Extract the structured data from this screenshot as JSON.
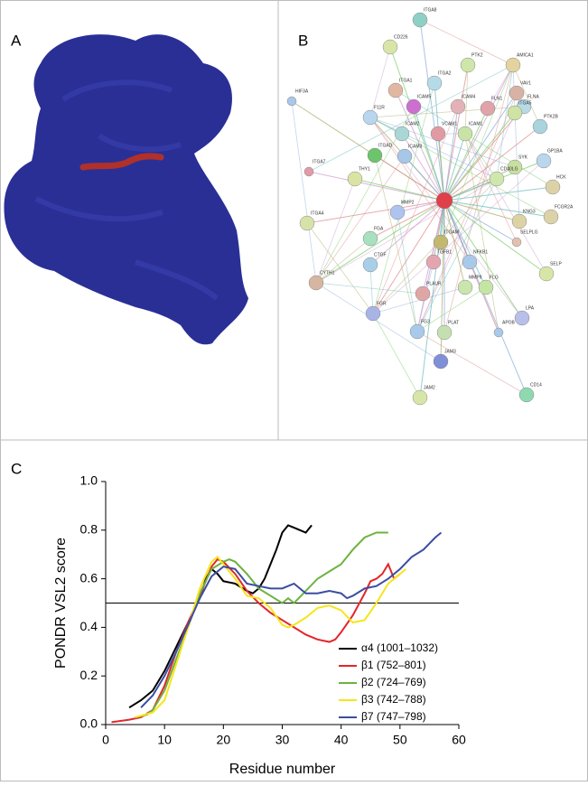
{
  "panels": {
    "a": "A",
    "b": "B",
    "c": "C"
  },
  "network": {
    "nodes": [
      "ITGA8",
      "CD226",
      "PTK2",
      "AMICA1",
      "HIF3A",
      "ITGA2",
      "VAV1",
      "FLN1",
      "FLNA",
      "ITGA1",
      "F11R",
      "ICAM5",
      "ICAM4",
      "ITGA5",
      "PTK2B",
      "ICAM2",
      "VCAM1",
      "ICAM1",
      "ICAM3",
      "GP1BA",
      "ITGAD",
      "ITGA7",
      "SYK",
      "HCK",
      "CD40LG",
      "THY1",
      "ITGA4",
      "MMP2",
      "KNG3",
      "FCGR2A",
      "SELPLG",
      "CYTH1",
      "FGA",
      "CTGF",
      "TGFB1",
      "ITGAM",
      "NFKB1",
      "SELP",
      "FGR",
      "PLAUR",
      "MMP9",
      "FLG",
      "PLAT",
      "LPA",
      "APOB",
      "FG3",
      "JAM3",
      "JAM2",
      "CD14"
    ]
  },
  "chart_data": {
    "type": "line",
    "xlabel": "Residue number",
    "ylabel": "PONDR VSL2 score",
    "xlim": [
      0,
      60
    ],
    "xticks": [
      0,
      10,
      20,
      30,
      40,
      50,
      60
    ],
    "ylim": [
      0,
      1
    ],
    "yticks": [
      {
        "value": 0,
        "label": "0.0"
      },
      {
        "value": 0.2,
        "label": "0.2"
      },
      {
        "value": 0.4,
        "label": "0.4"
      },
      {
        "value": 0.6,
        "label": "0.6"
      },
      {
        "value": 0.8,
        "label": "0.8"
      },
      {
        "value": 1,
        "label": "1.0"
      }
    ],
    "reference_line": 0.5,
    "legend": "lower right",
    "series": [
      {
        "name": "α4 (1001–1032)",
        "color": "#000000",
        "x": [
          4,
          6,
          8,
          10,
          12,
          14,
          16,
          17,
          18,
          19,
          20,
          22,
          24,
          25,
          26,
          27,
          28,
          29,
          30,
          31,
          32,
          33,
          34,
          35
        ],
        "values": [
          0.07,
          0.1,
          0.14,
          0.22,
          0.32,
          0.42,
          0.52,
          0.6,
          0.64,
          0.62,
          0.59,
          0.58,
          0.55,
          0.54,
          0.56,
          0.6,
          0.66,
          0.72,
          0.79,
          0.82,
          0.81,
          0.8,
          0.79,
          0.82
        ]
      },
      {
        "name": "β1 (752–801)",
        "color": "#e3262b",
        "x": [
          1,
          4,
          6,
          8,
          10,
          12,
          14,
          16,
          18,
          19,
          20,
          22,
          24,
          26,
          28,
          30,
          32,
          34,
          36,
          38,
          39,
          40,
          42,
          44,
          45,
          46,
          47,
          48,
          49,
          50
        ],
        "values": [
          0.01,
          0.02,
          0.03,
          0.06,
          0.16,
          0.3,
          0.42,
          0.53,
          0.65,
          0.68,
          0.67,
          0.62,
          0.55,
          0.5,
          0.46,
          0.43,
          0.4,
          0.37,
          0.35,
          0.34,
          0.35,
          0.38,
          0.45,
          0.54,
          0.59,
          0.6,
          0.62,
          0.66,
          0.6,
          0.62
        ]
      },
      {
        "name": "β2 (724–769)",
        "color": "#6cb33f",
        "x": [
          5,
          7,
          8,
          10,
          12,
          14,
          16,
          18,
          20,
          21,
          22,
          24,
          26,
          28,
          30,
          31,
          32,
          34,
          36,
          38,
          40,
          42,
          44,
          46,
          48
        ],
        "values": [
          0.03,
          0.04,
          0.06,
          0.14,
          0.27,
          0.4,
          0.54,
          0.64,
          0.67,
          0.68,
          0.67,
          0.62,
          0.56,
          0.53,
          0.5,
          0.52,
          0.5,
          0.55,
          0.6,
          0.63,
          0.66,
          0.72,
          0.77,
          0.79,
          0.79
        ]
      },
      {
        "name": "β3 (742–788)",
        "color": "#f6e51b",
        "x": [
          5,
          8,
          10,
          12,
          14,
          16,
          18,
          19,
          20,
          22,
          24,
          26,
          28,
          30,
          31,
          32,
          34,
          36,
          38,
          40,
          42,
          44,
          46,
          48,
          50,
          51
        ],
        "values": [
          0.03,
          0.05,
          0.1,
          0.25,
          0.4,
          0.56,
          0.67,
          0.69,
          0.66,
          0.6,
          0.53,
          0.52,
          0.48,
          0.41,
          0.4,
          0.41,
          0.44,
          0.48,
          0.49,
          0.47,
          0.42,
          0.43,
          0.5,
          0.58,
          0.62,
          0.64
        ]
      },
      {
        "name": "β7 (747–798)",
        "color": "#3b4da1",
        "x": [
          6,
          8,
          10,
          12,
          14,
          16,
          18,
          20,
          22,
          24,
          26,
          28,
          30,
          32,
          34,
          36,
          38,
          40,
          41,
          42,
          44,
          46,
          48,
          50,
          52,
          54,
          56,
          57
        ],
        "values": [
          0.07,
          0.12,
          0.2,
          0.3,
          0.41,
          0.52,
          0.61,
          0.65,
          0.64,
          0.58,
          0.57,
          0.56,
          0.56,
          0.58,
          0.54,
          0.54,
          0.55,
          0.54,
          0.52,
          0.53,
          0.56,
          0.57,
          0.6,
          0.64,
          0.69,
          0.72,
          0.77,
          0.79
        ]
      }
    ]
  }
}
